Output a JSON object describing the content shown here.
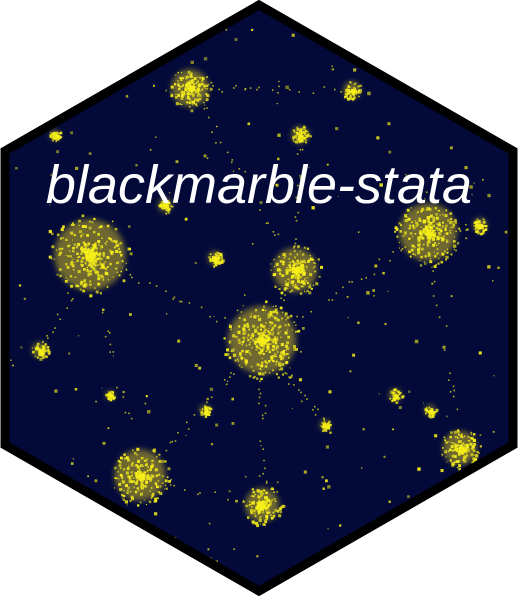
{
  "logo": {
    "title": "blackmarble-stata",
    "icon": "hex-sticker-night-lights-map",
    "colors": {
      "background": "#ffffff",
      "border": "#000000",
      "night_sky": "#030a3a",
      "city_lights": "#f5ee1a",
      "city_glow": "#c9b62a",
      "title_text": "#ffffff"
    }
  }
}
